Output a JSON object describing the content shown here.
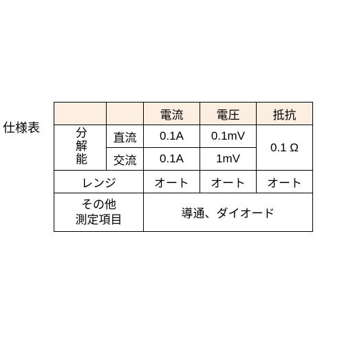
{
  "title": "仕様表",
  "table": {
    "header_bg": "#fceee0",
    "border_color": "#000000",
    "headers": {
      "current": "電流",
      "voltage": "電圧",
      "resistance": "抵抗"
    },
    "resolution": {
      "label": "分解能",
      "dc": {
        "label": "直流",
        "current": "0.1A",
        "voltage": "0.1mV"
      },
      "ac": {
        "label": "交流",
        "current": "0.1A",
        "voltage": "1mV"
      },
      "resistance": "0.1 Ω"
    },
    "range": {
      "label": "レンジ",
      "current": "オート",
      "voltage": "オート",
      "resistance": "オート"
    },
    "other": {
      "label_line1": "その他",
      "label_line2": "測定項目",
      "value": "導通、ダイオード"
    }
  }
}
